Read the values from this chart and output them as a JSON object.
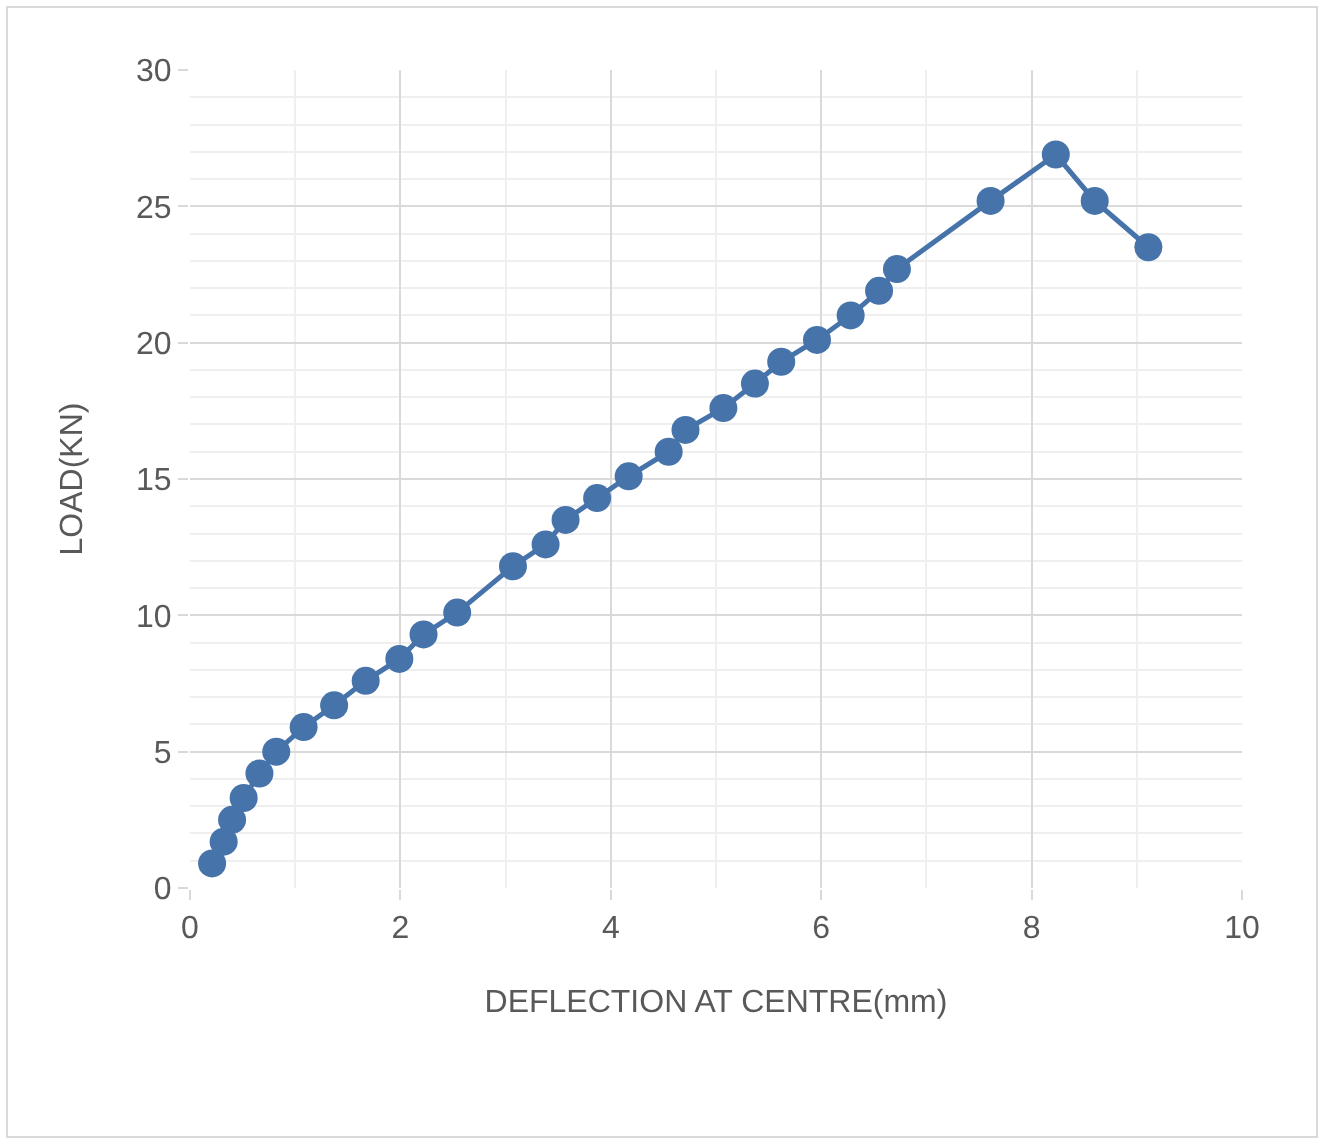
{
  "chart_data": {
    "type": "line",
    "xlabel": "DEFLECTION AT CENTRE(mm)",
    "ylabel": "LOAD(KN)",
    "x": [
      0.21,
      0.32,
      0.4,
      0.51,
      0.66,
      0.82,
      1.08,
      1.37,
      1.67,
      1.99,
      2.22,
      2.54,
      3.07,
      3.38,
      3.57,
      3.87,
      4.17,
      4.55,
      4.71,
      5.07,
      5.37,
      5.62,
      5.96,
      6.28,
      6.55,
      6.72,
      7.61,
      8.23,
      8.6,
      9.11
    ],
    "series": [
      {
        "color": "#4673aa",
        "values": [
          0.9,
          1.7,
          2.5,
          3.3,
          4.2,
          5.0,
          5.9,
          6.7,
          7.6,
          8.4,
          9.3,
          10.1,
          11.8,
          12.6,
          13.5,
          14.3,
          15.1,
          16.0,
          16.8,
          17.6,
          18.5,
          19.3,
          20.1,
          21.0,
          21.9,
          22.7,
          25.2,
          26.9,
          25.2,
          23.5
        ]
      }
    ],
    "xlim": [
      0,
      10
    ],
    "xticks": [
      0,
      {
        "value": 1,
        "label": null
      },
      2,
      {
        "value": 3,
        "label": null
      },
      4,
      {
        "value": 5,
        "label": null
      },
      6,
      {
        "value": 7,
        "label": null
      },
      8,
      {
        "value": 9,
        "label": null
      },
      10
    ],
    "ylim": [
      0,
      30
    ],
    "yticks": [
      0,
      {
        "value": 1,
        "label": null
      },
      {
        "value": 2,
        "label": null
      },
      {
        "value": 3,
        "label": null
      },
      {
        "value": 4,
        "label": null
      },
      5,
      {
        "value": 6,
        "label": null
      },
      {
        "value": 7,
        "label": null
      },
      {
        "value": 8,
        "label": null
      },
      {
        "value": 9,
        "label": null
      },
      10,
      {
        "value": 11,
        "label": null
      },
      {
        "value": 12,
        "label": null
      },
      {
        "value": 13,
        "label": null
      },
      {
        "value": 14,
        "label": null
      },
      15,
      {
        "value": 16,
        "label": null
      },
      {
        "value": 17,
        "label": null
      },
      {
        "value": 18,
        "label": null
      },
      {
        "value": 19,
        "label": null
      },
      20,
      {
        "value": 21,
        "label": null
      },
      {
        "value": 22,
        "label": null
      },
      {
        "value": 23,
        "label": null
      },
      {
        "value": 24,
        "label": null
      },
      25,
      {
        "value": 26,
        "label": null
      },
      {
        "value": 27,
        "label": null
      },
      {
        "value": 28,
        "label": null
      },
      {
        "value": 29,
        "label": null
      },
      30
    ],
    "grid": true,
    "marker": "circle",
    "line_style": "solid"
  }
}
